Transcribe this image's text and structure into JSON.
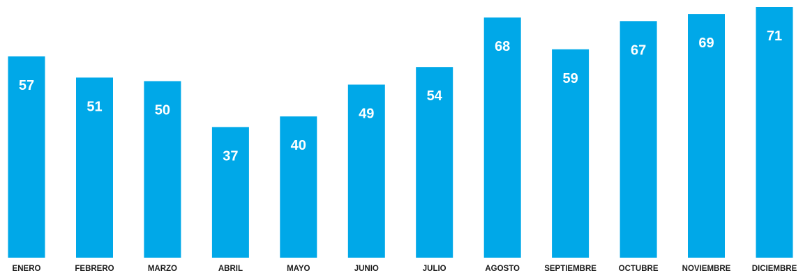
{
  "chart_data": {
    "type": "bar",
    "title": "",
    "xlabel": "",
    "ylabel": "",
    "categories": [
      "ENERO",
      "FEBRERO",
      "MARZO",
      "ABRIL",
      "MAYO",
      "JUNIO",
      "JULIO",
      "AGOSTO",
      "SEPTIEMBRE",
      "OCTUBRE",
      "NOVIEMBRE",
      "DICIEMBRE"
    ],
    "values": [
      57,
      51,
      50,
      37,
      40,
      49,
      54,
      68,
      59,
      67,
      69,
      71
    ],
    "ylim": [
      0,
      71
    ],
    "grid": false,
    "legend": "none",
    "colors": {
      "bar": "#00A8E8",
      "bar_label": "#ffffff",
      "category_label": "#1b1b1b"
    }
  }
}
